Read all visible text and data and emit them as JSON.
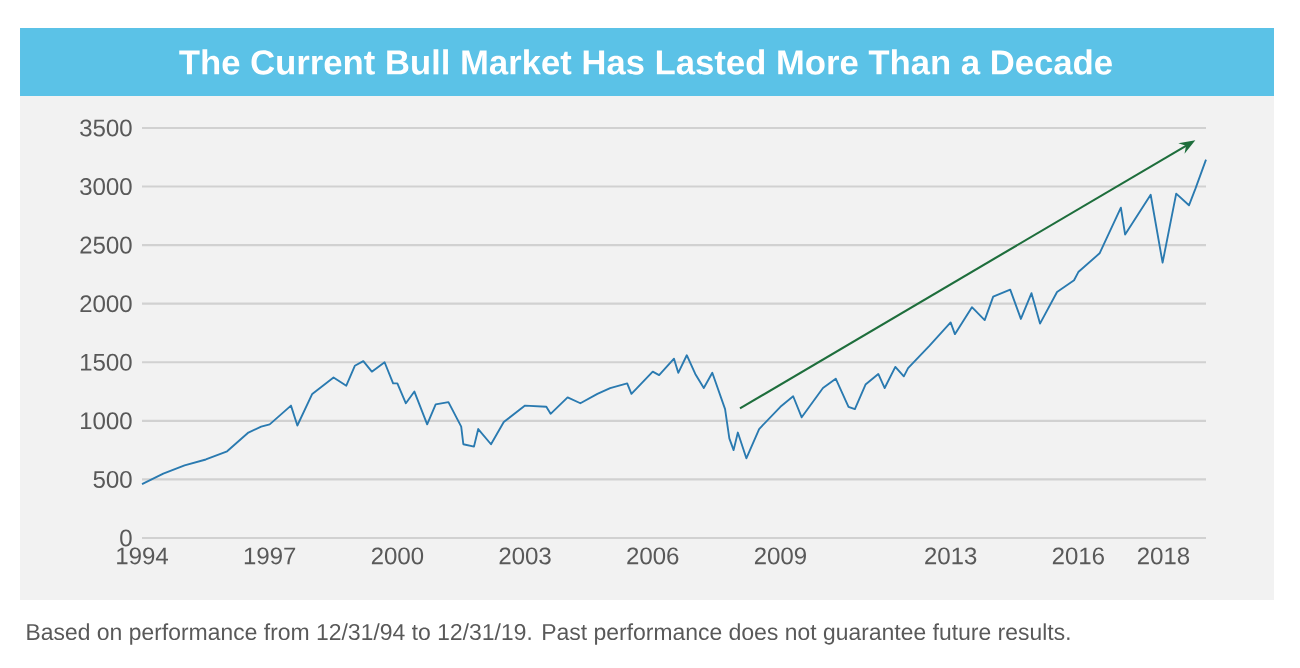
{
  "chart_data": {
    "type": "line",
    "title": "The Current Bull Market Has Lasted More Than a Decade",
    "annotations": [
      "Based on performance from 12/31/94 to 12/31/19. Past performance does not guarantee future results."
    ],
    "x": [
      1994.0,
      1994.5,
      1995.0,
      1995.5,
      1996.0,
      1996.5,
      1996.8,
      1997.0,
      1997.5,
      1997.65,
      1998.0,
      1998.5,
      1998.8,
      1999.0,
      1999.2,
      1999.4,
      1999.7,
      1999.9,
      2000.0,
      2000.2,
      2000.4,
      2000.7,
      2000.9,
      2001.2,
      2001.5,
      2001.55,
      2001.8,
      2001.9,
      2002.2,
      2002.5,
      2003.0,
      2003.5,
      2003.6,
      2004.0,
      2004.3,
      2004.7,
      2005.0,
      2005.4,
      2005.5,
      2006.0,
      2006.15,
      2006.5,
      2006.6,
      2006.8,
      2007.0,
      2007.2,
      2007.4,
      2007.7,
      2007.8,
      2007.9,
      2008.0,
      2008.2,
      2008.5,
      2009.0,
      2009.3,
      2009.5,
      2010.0,
      2010.3,
      2010.6,
      2010.75,
      2011.0,
      2011.3,
      2011.45,
      2011.7,
      2011.9,
      2012.0,
      2012.5,
      2013.0,
      2013.1,
      2013.5,
      2013.8,
      2014.0,
      2014.4,
      2014.65,
      2014.9,
      2015.1,
      2015.5,
      2015.9,
      2016.0,
      2016.5,
      2017.0,
      2017.1,
      2017.7,
      2017.98,
      2018.3,
      2018.6,
      2018.75,
      2019.0
    ],
    "series": [
      {
        "color": "#2a7ab0",
        "values": [
          460,
          550,
          620,
          670,
          740,
          900,
          950,
          970,
          1130,
          960,
          1230,
          1370,
          1300,
          1470,
          1510,
          1420,
          1500,
          1320,
          1320,
          1150,
          1250,
          970,
          1140,
          1160,
          950,
          800,
          780,
          930,
          800,
          990,
          1130,
          1120,
          1060,
          1200,
          1150,
          1230,
          1280,
          1320,
          1230,
          1420,
          1390,
          1530,
          1410,
          1560,
          1400,
          1280,
          1410,
          1100,
          850,
          750,
          900,
          680,
          930,
          1120,
          1210,
          1030,
          1280,
          1360,
          1120,
          1100,
          1310,
          1400,
          1280,
          1460,
          1380,
          1450,
          1640,
          1840,
          1740,
          1970,
          1860,
          2060,
          2120,
          1870,
          2090,
          1830,
          2100,
          2200,
          2270,
          2430,
          2820,
          2590,
          2930,
          2350,
          2940,
          2840,
          2980,
          3230
        ]
      }
    ],
    "xlim": [
      1994,
      2019
    ],
    "xticks": [
      1994,
      1997,
      2000,
      2003,
      2006,
      2009,
      2013,
      2016,
      2018
    ],
    "ylim": [
      0,
      3500
    ],
    "yticks": [
      0,
      500,
      1000,
      1500,
      2000,
      2500,
      3000,
      3500
    ],
    "grid": "y",
    "marker": "none",
    "line_style": "solid"
  }
}
